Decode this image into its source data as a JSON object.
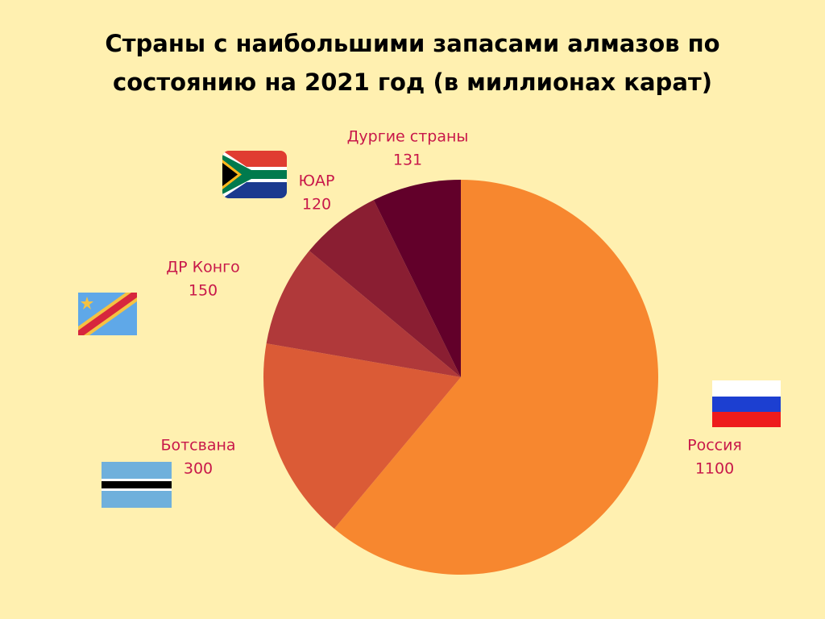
{
  "chart_data": {
    "type": "pie",
    "title": "Страны с наибольшими запасами алмазов по состоянию на 2021 год (в миллионах карат)",
    "categories": [
      "Россия",
      "Ботсвана",
      "ДР Конго",
      "ЮАР",
      "Дургие страны"
    ],
    "values": [
      1100,
      300,
      150,
      120,
      131
    ],
    "colors": [
      "#f7872f",
      "#db5b36",
      "#b0393a",
      "#8a1e32",
      "#62002a"
    ],
    "start_angle": 0,
    "direction": "clockwise"
  }
}
